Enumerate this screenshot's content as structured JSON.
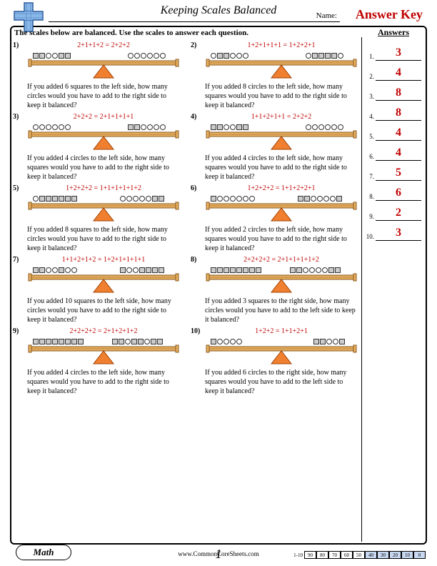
{
  "header": {
    "title": "Keeping Scales Balanced",
    "name_label": "Name:",
    "answer_key": "Answer Key",
    "instruction": "The scales below are balanced. Use the scales to answer each question."
  },
  "colors": {
    "accent": "#c00000",
    "beam": "#e8b060",
    "beam_border": "#8a5a20",
    "fulcrum": "#f08030",
    "fulcrum_border": "#a04000",
    "square_fill": "#cccccc",
    "square_border": "#333333",
    "circle_fill": "#ffffff",
    "circle_border": "#333333"
  },
  "answers": {
    "heading": "Answers",
    "items": [
      {
        "num": "1.",
        "val": "3"
      },
      {
        "num": "2.",
        "val": "4"
      },
      {
        "num": "3.",
        "val": "8"
      },
      {
        "num": "4.",
        "val": "8"
      },
      {
        "num": "5.",
        "val": "4"
      },
      {
        "num": "6.",
        "val": "4"
      },
      {
        "num": "7.",
        "val": "5"
      },
      {
        "num": "8.",
        "val": "6"
      },
      {
        "num": "9.",
        "val": "2"
      },
      {
        "num": "10.",
        "val": "3"
      }
    ]
  },
  "questions": [
    {
      "num": "1)",
      "eq": "2+1+1+2 = 2+2+2",
      "left": [
        "s",
        "s",
        "c",
        "c",
        "s",
        "s"
      ],
      "right": [
        "c",
        "c",
        "c",
        "c",
        "c",
        "c"
      ],
      "text": "If you added 6 squares to the left side, how many circles would you have to add to the right side to keep it balanced?"
    },
    {
      "num": "2)",
      "eq": "1+2+1+1+1 = 1+2+2+1",
      "left": [
        "c",
        "s",
        "s",
        "c",
        "c",
        "c"
      ],
      "right": [
        "c",
        "s",
        "s",
        "s",
        "s",
        "c"
      ],
      "text": "If you added 8 circles to the left side, how many squares would you have to add to the right side to keep it balanced?"
    },
    {
      "num": "3)",
      "eq": "2+2+2 = 2+1+1+1+1",
      "left": [
        "c",
        "c",
        "c",
        "c",
        "c",
        "c"
      ],
      "right": [
        "s",
        "s",
        "c",
        "c",
        "c",
        "c"
      ],
      "text": "If you added 4 circles to the left side, how many squares would you have to add to the right side to keep it balanced?"
    },
    {
      "num": "4)",
      "eq": "1+1+2+1+1 = 2+2+2",
      "left": [
        "s",
        "s",
        "c",
        "c",
        "s",
        "s"
      ],
      "right": [
        "c",
        "c",
        "c",
        "c",
        "c",
        "c"
      ],
      "text": "If you added 4 circles to the left side, how many squares would you have to add to the right side to keep it balanced?"
    },
    {
      "num": "5)",
      "eq": "1+2+2+2 = 1+1+1+1+1+2",
      "left": [
        "c",
        "s",
        "s",
        "s",
        "s",
        "s",
        "s"
      ],
      "right": [
        "c",
        "c",
        "c",
        "c",
        "c",
        "s",
        "s"
      ],
      "text": "If you added 8 squares to the left side, how many circles would you have to add to the right side to keep it balanced?"
    },
    {
      "num": "6)",
      "eq": "1+2+2+2 = 1+1+2+2+1",
      "left": [
        "s",
        "c",
        "c",
        "c",
        "c",
        "c",
        "c"
      ],
      "right": [
        "s",
        "s",
        "c",
        "c",
        "c",
        "c",
        "s"
      ],
      "text": "If you added 2 circles to the left side, how many squares would you have to add to the right side to keep it balanced?"
    },
    {
      "num": "7)",
      "eq": "1+1+2+1+2 = 1+2+1+1+1+1",
      "left": [
        "s",
        "s",
        "c",
        "c",
        "s",
        "c",
        "c"
      ],
      "right": [
        "s",
        "c",
        "c",
        "s",
        "s",
        "s",
        "s"
      ],
      "text": "If you added 10 squares to the left side, how many circles would you have to add to the right side to keep it balanced?"
    },
    {
      "num": "8)",
      "eq": "2+2+2+2 = 2+1+1+1+1+2",
      "left": [
        "s",
        "s",
        "s",
        "s",
        "s",
        "s",
        "s",
        "s"
      ],
      "right": [
        "s",
        "s",
        "c",
        "c",
        "c",
        "c",
        "s",
        "s"
      ],
      "text": "If you added 3 squares to the right side, how many circles would you have to add to the left side to keep it balanced?"
    },
    {
      "num": "9)",
      "eq": "2+2+2+2 = 2+1+2+1+2",
      "left": [
        "s",
        "s",
        "s",
        "s",
        "s",
        "s",
        "s",
        "s"
      ],
      "right": [
        "s",
        "s",
        "c",
        "s",
        "s",
        "c",
        "s",
        "s"
      ],
      "text": "If you added 4 circles to the left side, how many squares would you have to add to the right side to keep it balanced?"
    },
    {
      "num": "10)",
      "eq": "1+2+2 = 1+1+2+1",
      "left": [
        "s",
        "c",
        "c",
        "c",
        "c"
      ],
      "right": [
        "s",
        "s",
        "c",
        "c",
        "s"
      ],
      "text": "If you added 6 circles to the right side, how many squares would you have to add to the left side to keep it balanced?"
    }
  ],
  "footer": {
    "subject": "Math",
    "website": "www.CommonCoreSheets.com",
    "page": "1",
    "score_label": "1-10",
    "score_cells": [
      "90",
      "80",
      "70",
      "60",
      "50",
      "40",
      "30",
      "20",
      "10",
      "0"
    ],
    "shaded_from": 5
  }
}
